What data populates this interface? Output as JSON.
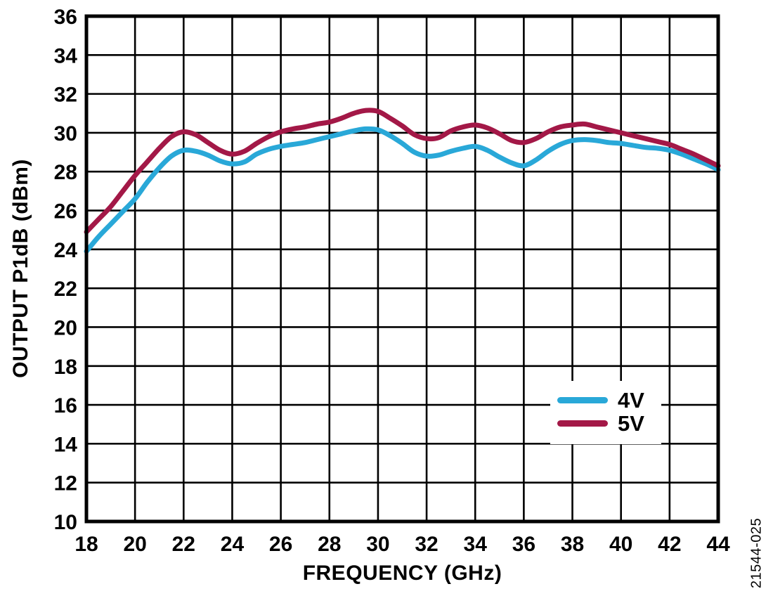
{
  "figure_id": "21544-025",
  "chart_data": {
    "type": "line",
    "title": "",
    "xlabel": "FREQUENCY (GHz)",
    "ylabel": "OUTPUT P1dB (dBm)",
    "xlim": [
      18,
      44
    ],
    "ylim": [
      10,
      36
    ],
    "x_ticks": [
      18,
      20,
      22,
      24,
      26,
      28,
      30,
      32,
      34,
      36,
      38,
      40,
      42,
      44
    ],
    "y_ticks": [
      10,
      12,
      14,
      16,
      18,
      20,
      22,
      24,
      26,
      28,
      30,
      32,
      34,
      36
    ],
    "grid": true,
    "legend_position": "inside lower-right",
    "x": [
      18,
      18.5,
      19,
      19.5,
      20,
      20.5,
      21,
      21.5,
      22,
      22.5,
      23,
      23.5,
      24,
      24.5,
      25,
      25.5,
      26,
      26.5,
      27,
      27.5,
      28,
      28.5,
      29,
      29.5,
      30,
      30.5,
      31,
      31.5,
      32,
      32.5,
      33,
      33.5,
      34,
      34.5,
      35,
      35.5,
      36,
      36.5,
      37,
      37.5,
      38,
      38.5,
      39,
      39.5,
      40,
      40.5,
      41,
      41.5,
      42,
      42.5,
      43,
      43.5,
      44
    ],
    "series": [
      {
        "name": "4V",
        "color": "#29A8D8",
        "values": [
          23.9,
          24.65,
          25.3,
          25.95,
          26.6,
          27.45,
          28.2,
          28.8,
          29.1,
          29.05,
          28.85,
          28.55,
          28.4,
          28.5,
          28.9,
          29.15,
          29.3,
          29.4,
          29.5,
          29.65,
          29.8,
          29.95,
          30.1,
          30.2,
          30.15,
          29.85,
          29.45,
          29.0,
          28.8,
          28.85,
          29.05,
          29.2,
          29.3,
          29.1,
          28.75,
          28.45,
          28.3,
          28.6,
          29.05,
          29.4,
          29.6,
          29.65,
          29.6,
          29.5,
          29.45,
          29.35,
          29.25,
          29.2,
          29.1,
          28.9,
          28.65,
          28.4,
          28.1
        ]
      },
      {
        "name": "5V",
        "color": "#A31847",
        "values": [
          24.9,
          25.55,
          26.2,
          27.0,
          27.8,
          28.5,
          29.2,
          29.8,
          30.05,
          29.9,
          29.5,
          29.1,
          28.9,
          29.05,
          29.45,
          29.8,
          30.05,
          30.2,
          30.3,
          30.45,
          30.55,
          30.75,
          31.0,
          31.15,
          31.1,
          30.75,
          30.35,
          29.9,
          29.7,
          29.75,
          30.1,
          30.3,
          30.4,
          30.25,
          29.95,
          29.6,
          29.5,
          29.7,
          30.05,
          30.3,
          30.4,
          30.45,
          30.3,
          30.15,
          30.0,
          29.85,
          29.7,
          29.55,
          29.4,
          29.15,
          28.9,
          28.6,
          28.3
        ]
      }
    ]
  },
  "style": {
    "axis_color": "#000000",
    "grid_color": "#000000",
    "background": "#FFFFFF",
    "tick_font_size": 30,
    "line_width": 7
  }
}
